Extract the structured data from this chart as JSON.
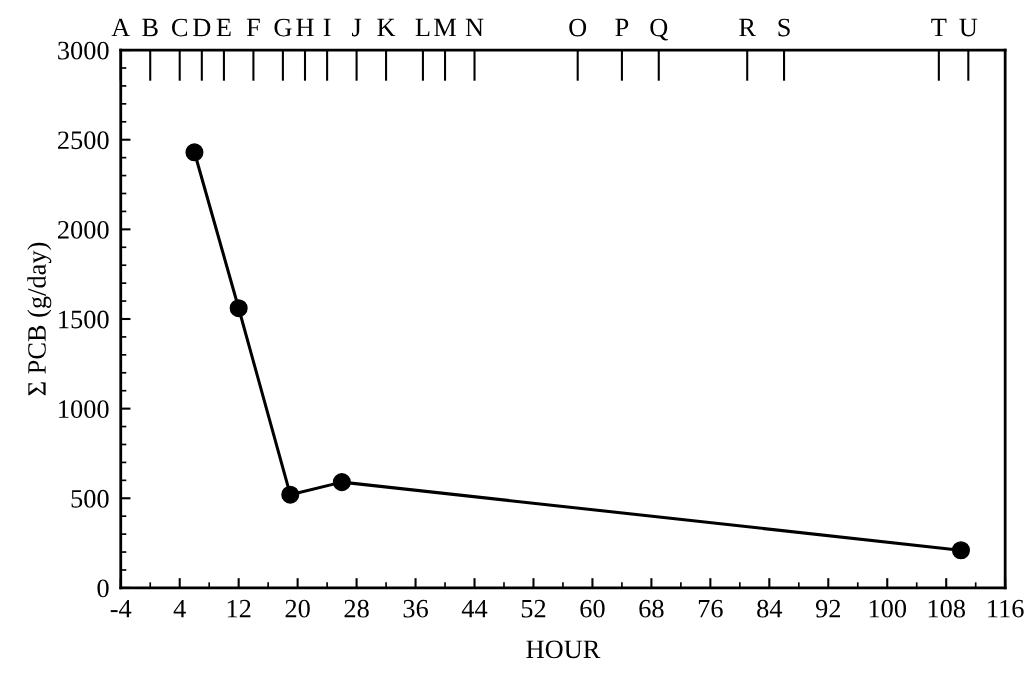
{
  "chart_data": {
    "type": "line",
    "xlabel": "HOUR",
    "ylabel": "Σ PCB (g/day)",
    "x": [
      6,
      12,
      19,
      26,
      110
    ],
    "series": [
      {
        "color": "#000000",
        "values": [
          2430,
          1560,
          520,
          590,
          210
        ]
      }
    ],
    "marker": "circle",
    "line_style": "solid",
    "grid": false,
    "legend": false,
    "xlim": [
      -4,
      116
    ],
    "xticks": [
      -4,
      4,
      12,
      20,
      28,
      36,
      44,
      52,
      60,
      68,
      76,
      84,
      92,
      100,
      108,
      116
    ],
    "ylim": [
      0,
      3000
    ],
    "yticks": [
      0,
      500,
      1000,
      1500,
      2000,
      2500,
      3000
    ],
    "ref_lines": [
      {
        "axis": "x",
        "value": -4,
        "label": "A"
      },
      {
        "axis": "x",
        "value": 0,
        "label": "B"
      },
      {
        "axis": "x",
        "value": 4,
        "label": "C"
      },
      {
        "axis": "x",
        "value": 7,
        "label": "D"
      },
      {
        "axis": "x",
        "value": 10,
        "label": "E"
      },
      {
        "axis": "x",
        "value": 14,
        "label": "F"
      },
      {
        "axis": "x",
        "value": 18,
        "label": "G"
      },
      {
        "axis": "x",
        "value": 21,
        "label": "H"
      },
      {
        "axis": "x",
        "value": 24,
        "label": "I"
      },
      {
        "axis": "x",
        "value": 28,
        "label": "J"
      },
      {
        "axis": "x",
        "value": 32,
        "label": "K"
      },
      {
        "axis": "x",
        "value": 37,
        "label": "L"
      },
      {
        "axis": "x",
        "value": 40,
        "label": "M"
      },
      {
        "axis": "x",
        "value": 44,
        "label": "N"
      },
      {
        "axis": "x",
        "value": 58,
        "label": "O"
      },
      {
        "axis": "x",
        "value": 64,
        "label": "P"
      },
      {
        "axis": "x",
        "value": 69,
        "label": "Q"
      },
      {
        "axis": "x",
        "value": 81,
        "label": "R"
      },
      {
        "axis": "x",
        "value": 86,
        "label": "S"
      },
      {
        "axis": "x",
        "value": 107,
        "label": "T"
      },
      {
        "axis": "x",
        "value": 111,
        "label": "U"
      }
    ]
  }
}
